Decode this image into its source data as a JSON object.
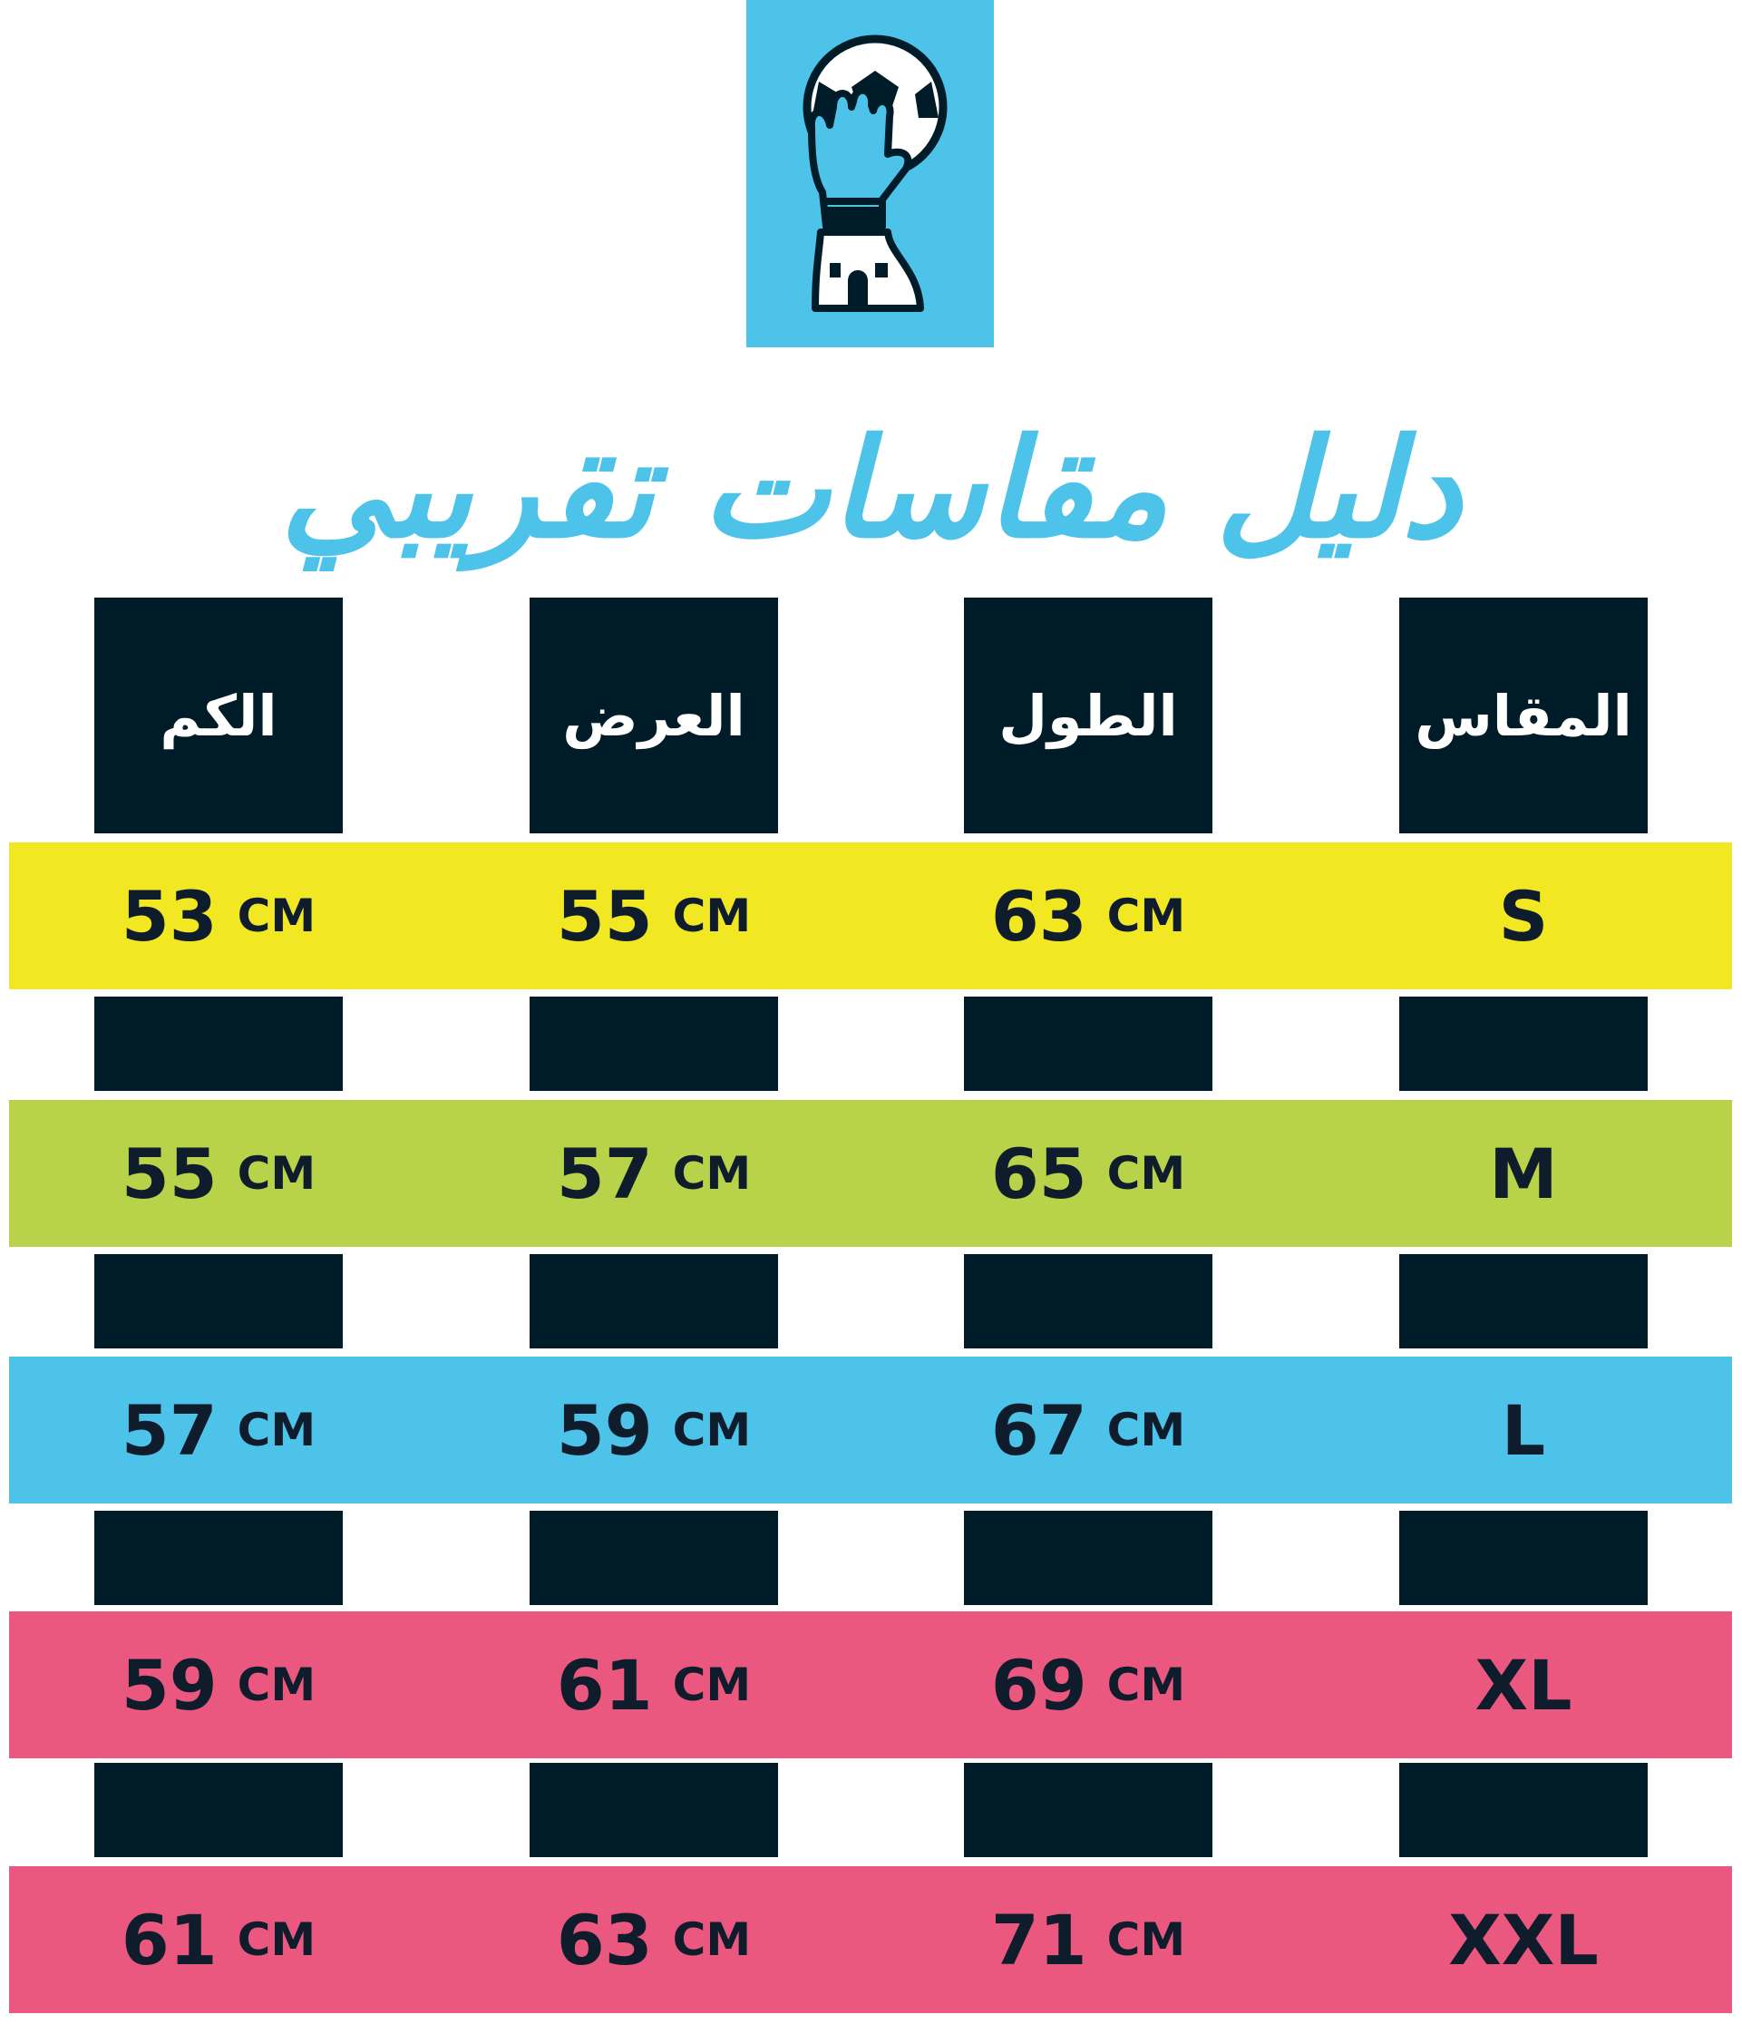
{
  "logo": {
    "icon": "goalkeeper-glove-ball-trophy-icon",
    "bg_color": "#4ec3ea"
  },
  "title": "دليل مقاسات تقريبي",
  "headers": [
    "الكم",
    "العرض",
    "الطول",
    "المقاس"
  ],
  "unit": "CM",
  "rows": [
    {
      "size": "S",
      "sleeve": "53",
      "width": "55",
      "length": "63",
      "color": "#f2e723"
    },
    {
      "size": "M",
      "sleeve": "55",
      "width": "57",
      "length": "65",
      "color": "#b8d24a"
    },
    {
      "size": "L",
      "sleeve": "57",
      "width": "59",
      "length": "67",
      "color": "#4ec3ea"
    },
    {
      "size": "XL",
      "sleeve": "59",
      "width": "61",
      "length": "69",
      "color": "#eb587f"
    },
    {
      "size": "XXL",
      "sleeve": "61",
      "width": "63",
      "length": "71",
      "color": "#eb587f"
    }
  ],
  "colors": {
    "dark": "#011c29",
    "text": "#0f1c2b",
    "title": "#4ec3ea"
  }
}
